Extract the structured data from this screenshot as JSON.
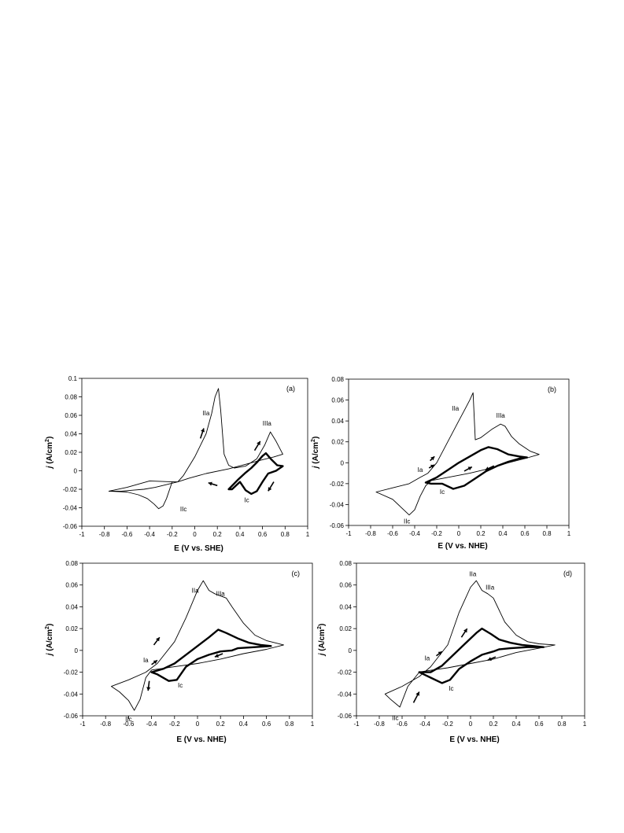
{
  "chart_data": [
    {
      "type": "line",
      "panel_label": "(a)",
      "xlabel": "E (V vs. SHE)",
      "ylabel": "j (A/cm2)",
      "xlim": [
        -1,
        1
      ],
      "ylim": [
        -0.06,
        0.1
      ],
      "xticks": [
        -1,
        -0.8,
        -0.6,
        -0.4,
        -0.2,
        0,
        0.2,
        0.4,
        0.6,
        0.8,
        1
      ],
      "yticks": [
        -0.06,
        -0.04,
        -0.02,
        0,
        0.02,
        0.04,
        0.06,
        0.08,
        0.1
      ],
      "xtick_labels": [
        "-1",
        "-0.8",
        "-0.6",
        "-0.4",
        "-0.2",
        "0",
        "0.2",
        "0.4",
        "0.6",
        "0.8",
        "1"
      ],
      "ytick_labels": [
        "-0.06",
        "-0.04",
        "-0.02",
        "0",
        "0.02",
        "0.04",
        "0.06",
        "0.08",
        "0.1"
      ],
      "series": [
        {
          "style": "thin",
          "x": [
            0.78,
            0.7,
            0.6,
            0.45,
            0.3,
            0.1,
            -0.05,
            -0.15,
            -0.25,
            -0.35,
            -0.45,
            -0.55,
            -0.65,
            -0.76,
            -0.6,
            -0.4,
            -0.2,
            -0.15,
            -0.1,
            0.0,
            0.1,
            0.15,
            0.18,
            0.21,
            0.23,
            0.26,
            0.3,
            0.35,
            0.45,
            0.55,
            0.62,
            0.67,
            0.72,
            0.78
          ],
          "y": [
            0.018,
            0.015,
            0.012,
            0.007,
            0.002,
            -0.003,
            -0.008,
            -0.012,
            -0.015,
            -0.018,
            -0.02,
            -0.021,
            -0.022,
            -0.022,
            -0.018,
            -0.011,
            -0.012,
            -0.012,
            -0.005,
            0.015,
            0.04,
            0.062,
            0.08,
            0.089,
            0.065,
            0.018,
            0.006,
            0.003,
            0.005,
            0.013,
            0.028,
            0.042,
            0.032,
            0.018
          ]
        },
        {
          "style": "thin",
          "x": [
            -0.2,
            -0.25,
            -0.28,
            -0.32,
            -0.36,
            -0.42,
            -0.5,
            -0.6,
            -0.76
          ],
          "y": [
            -0.012,
            -0.03,
            -0.038,
            -0.041,
            -0.036,
            -0.03,
            -0.026,
            -0.023,
            -0.022
          ]
        },
        {
          "style": "thick",
          "x": [
            0.3,
            0.38,
            0.45,
            0.5,
            0.55,
            0.6,
            0.63,
            0.68,
            0.73,
            0.78,
            0.72,
            0.65,
            0.6,
            0.55,
            0.5,
            0.45,
            0.4,
            0.33,
            0.3
          ],
          "y": [
            -0.02,
            -0.01,
            -0.002,
            0.003,
            0.009,
            0.016,
            0.019,
            0.012,
            0.006,
            0.005,
            0.0,
            -0.003,
            -0.012,
            -0.022,
            -0.025,
            -0.021,
            -0.012,
            -0.02,
            -0.02
          ]
        }
      ],
      "annotations": [
        {
          "text": "IIa",
          "x": 0.1,
          "y": 0.06
        },
        {
          "text": "IIIa",
          "x": 0.64,
          "y": 0.049
        },
        {
          "text": "Ic",
          "x": 0.46,
          "y": -0.034
        },
        {
          "text": "IIc",
          "x": -0.1,
          "y": -0.044
        }
      ],
      "arrows": [
        {
          "x1": 0.05,
          "y1": 0.035,
          "x2": 0.08,
          "y2": 0.046
        },
        {
          "x1": 0.53,
          "y1": 0.022,
          "x2": 0.58,
          "y2": 0.032
        },
        {
          "x1": 0.2,
          "y1": -0.016,
          "x2": 0.12,
          "y2": -0.013
        },
        {
          "x1": 0.7,
          "y1": -0.012,
          "x2": 0.65,
          "y2": -0.022
        }
      ]
    },
    {
      "type": "line",
      "panel_label": "(b)",
      "xlabel": "E (V vs. NHE)",
      "ylabel": "j (A/cm2)",
      "xlim": [
        -1,
        1
      ],
      "ylim": [
        -0.06,
        0.08
      ],
      "xticks": [
        -1,
        -0.8,
        -0.6,
        -0.4,
        -0.2,
        0,
        0.2,
        0.4,
        0.6,
        0.8,
        1
      ],
      "yticks": [
        -0.06,
        -0.04,
        -0.02,
        0,
        0.02,
        0.04,
        0.06,
        0.08
      ],
      "xtick_labels": [
        "-1",
        "-0.8",
        "-0.6",
        "-0.4",
        "-0.2",
        "0",
        "0.2",
        "0.4",
        "0.6",
        "0.8",
        "1"
      ],
      "ytick_labels": [
        "-0.06",
        "-0.04",
        "-0.02",
        "0",
        "0.02",
        "0.04",
        "0.06",
        "0.08"
      ],
      "series": [
        {
          "style": "thin",
          "x": [
            -0.75,
            -0.6,
            -0.45,
            -0.35,
            -0.28,
            -0.2,
            -0.1,
            0.0,
            0.05,
            0.1,
            0.13,
            0.15,
            0.2,
            0.3,
            0.38,
            0.42,
            0.48,
            0.55,
            0.65,
            0.73,
            0.6,
            0.45,
            0.3,
            0.1,
            -0.1,
            -0.25,
            -0.3,
            -0.35,
            -0.4,
            -0.45,
            -0.5,
            -0.6,
            -0.75
          ],
          "y": [
            -0.028,
            -0.024,
            -0.02,
            -0.014,
            -0.01,
            0.0,
            0.02,
            0.04,
            0.05,
            0.06,
            0.067,
            0.022,
            0.024,
            0.032,
            0.037,
            0.035,
            0.025,
            0.018,
            0.011,
            0.008,
            0.004,
            0.0,
            -0.005,
            -0.01,
            -0.014,
            -0.017,
            -0.022,
            -0.032,
            -0.045,
            -0.05,
            -0.045,
            -0.035,
            -0.028
          ]
        },
        {
          "style": "thick",
          "x": [
            -0.3,
            -0.2,
            -0.1,
            0.0,
            0.1,
            0.2,
            0.27,
            0.35,
            0.45,
            0.55,
            0.62,
            0.55,
            0.45,
            0.35,
            0.25,
            0.15,
            0.05,
            -0.05,
            -0.15,
            -0.25,
            -0.3
          ],
          "y": [
            -0.019,
            -0.014,
            -0.007,
            0.0,
            0.006,
            0.012,
            0.015,
            0.013,
            0.008,
            0.006,
            0.005,
            0.004,
            0.001,
            -0.003,
            -0.008,
            -0.015,
            -0.022,
            -0.025,
            -0.02,
            -0.02,
            -0.019
          ]
        }
      ],
      "annotations": [
        {
          "text": "IIa",
          "x": -0.03,
          "y": 0.05
        },
        {
          "text": "IIIa",
          "x": 0.38,
          "y": 0.043
        },
        {
          "text": "Ia",
          "x": -0.35,
          "y": -0.009
        },
        {
          "text": "Ic",
          "x": -0.15,
          "y": -0.03
        },
        {
          "text": "IIc",
          "x": -0.47,
          "y": -0.058
        }
      ],
      "arrows": [
        {
          "x1": -0.27,
          "y1": -0.005,
          "x2": -0.22,
          "y2": -0.002
        },
        {
          "x1": -0.26,
          "y1": 0.002,
          "x2": -0.22,
          "y2": 0.006
        },
        {
          "x1": 0.05,
          "y1": -0.008,
          "x2": 0.12,
          "y2": -0.004
        },
        {
          "x1": 0.32,
          "y1": -0.003,
          "x2": 0.24,
          "y2": -0.007
        }
      ]
    },
    {
      "type": "line",
      "panel_label": "(c)",
      "xlabel": "E (V vs. NHE)",
      "ylabel": "j (A/cm2)",
      "xlim": [
        -1,
        1
      ],
      "ylim": [
        -0.06,
        0.08
      ],
      "xticks": [
        -1,
        -0.8,
        -0.6,
        -0.4,
        -0.2,
        0,
        0.2,
        0.4,
        0.6,
        0.8,
        1
      ],
      "yticks": [
        -0.06,
        -0.04,
        -0.02,
        0,
        0.02,
        0.04,
        0.06,
        0.08
      ],
      "xtick_labels": [
        "-1",
        "-0.8",
        "-0.6",
        "-0.4",
        "-0.2",
        "0",
        "0.2",
        "0.4",
        "0.6",
        "0.8",
        "1"
      ],
      "ytick_labels": [
        "-0.06",
        "-0.04",
        "-0.02",
        "0",
        "0.02",
        "0.04",
        "0.06",
        "0.08"
      ],
      "series": [
        {
          "style": "thin",
          "x": [
            -0.75,
            -0.6,
            -0.45,
            -0.35,
            -0.2,
            -0.1,
            0.0,
            0.05,
            0.1,
            0.15,
            0.2,
            0.25,
            0.3,
            0.4,
            0.5,
            0.6,
            0.75,
            0.6,
            0.4,
            0.2,
            0.0,
            -0.2,
            -0.4,
            -0.45,
            -0.5,
            -0.55,
            -0.6,
            -0.68,
            -0.75
          ],
          "y": [
            -0.033,
            -0.027,
            -0.02,
            -0.012,
            0.008,
            0.03,
            0.055,
            0.064,
            0.055,
            0.052,
            0.05,
            0.048,
            0.04,
            0.025,
            0.014,
            0.009,
            0.005,
            0.001,
            -0.003,
            -0.008,
            -0.012,
            -0.015,
            -0.018,
            -0.025,
            -0.045,
            -0.055,
            -0.046,
            -0.038,
            -0.033
          ]
        },
        {
          "style": "thick",
          "x": [
            -0.4,
            -0.3,
            -0.2,
            -0.1,
            0.0,
            0.1,
            0.18,
            0.25,
            0.35,
            0.45,
            0.55,
            0.64,
            0.5,
            0.35,
            0.3,
            0.2,
            0.1,
            0.0,
            -0.1,
            -0.18,
            -0.25,
            -0.35,
            -0.4
          ],
          "y": [
            -0.02,
            -0.017,
            -0.012,
            -0.004,
            0.004,
            0.012,
            0.019,
            0.016,
            0.011,
            0.007,
            0.005,
            0.004,
            0.003,
            0.002,
            0.0,
            -0.001,
            -0.004,
            -0.008,
            -0.015,
            -0.027,
            -0.028,
            -0.022,
            -0.02
          ]
        }
      ],
      "annotations": [
        {
          "text": "IIa",
          "x": -0.02,
          "y": 0.053
        },
        {
          "text": "IIIa",
          "x": 0.2,
          "y": 0.05
        },
        {
          "text": "Ia",
          "x": -0.45,
          "y": -0.011
        },
        {
          "text": "Ic",
          "x": -0.15,
          "y": -0.034
        },
        {
          "text": "IIc",
          "x": -0.6,
          "y": -0.065
        }
      ],
      "arrows": [
        {
          "x1": -0.38,
          "y1": 0.005,
          "x2": -0.33,
          "y2": 0.012
        },
        {
          "x1": -0.4,
          "y1": -0.013,
          "x2": -0.35,
          "y2": -0.009
        },
        {
          "x1": -0.42,
          "y1": -0.028,
          "x2": -0.43,
          "y2": -0.037
        },
        {
          "x1": 0.22,
          "y1": -0.003,
          "x2": 0.15,
          "y2": -0.006
        }
      ]
    },
    {
      "type": "line",
      "panel_label": "(d)",
      "xlabel": "E (V vs. NHE)",
      "ylabel": "j (A/cm2)",
      "xlim": [
        -1,
        1
      ],
      "ylim": [
        -0.06,
        0.08
      ],
      "xticks": [
        -1,
        -0.8,
        -0.6,
        -0.4,
        -0.2,
        0,
        0.2,
        0.4,
        0.6,
        0.8,
        1
      ],
      "yticks": [
        -0.06,
        -0.04,
        -0.02,
        0,
        0.02,
        0.04,
        0.06,
        0.08
      ],
      "xtick_labels": [
        "-1",
        "-0.8",
        "-0.6",
        "-0.4",
        "-0.2",
        "0",
        "0.2",
        "0.4",
        "0.6",
        "0.8",
        "1"
      ],
      "ytick_labels": [
        "-0.06",
        "-0.04",
        "-0.02",
        "0",
        "0.02",
        "0.04",
        "0.06",
        "0.08"
      ],
      "series": [
        {
          "style": "thin",
          "x": [
            -0.75,
            -0.6,
            -0.45,
            -0.35,
            -0.2,
            -0.1,
            0.0,
            0.05,
            0.1,
            0.15,
            0.2,
            0.3,
            0.4,
            0.5,
            0.6,
            0.74,
            0.6,
            0.4,
            0.2,
            0.0,
            -0.2,
            -0.4,
            -0.45,
            -0.55,
            -0.62,
            -0.7,
            -0.75
          ],
          "y": [
            -0.04,
            -0.033,
            -0.024,
            -0.015,
            0.005,
            0.035,
            0.058,
            0.064,
            0.055,
            0.052,
            0.048,
            0.026,
            0.014,
            0.008,
            0.006,
            0.005,
            0.002,
            -0.002,
            -0.008,
            -0.012,
            -0.016,
            -0.019,
            -0.02,
            -0.033,
            -0.052,
            -0.045,
            -0.04
          ]
        },
        {
          "style": "thick",
          "x": [
            -0.45,
            -0.35,
            -0.25,
            -0.15,
            -0.05,
            0.05,
            0.1,
            0.18,
            0.25,
            0.35,
            0.45,
            0.55,
            0.64,
            0.5,
            0.35,
            0.25,
            0.2,
            0.1,
            0.0,
            -0.1,
            -0.18,
            -0.25,
            -0.35,
            -0.45
          ],
          "y": [
            -0.02,
            -0.02,
            -0.014,
            -0.004,
            0.006,
            0.016,
            0.02,
            0.015,
            0.01,
            0.007,
            0.005,
            0.004,
            0.003,
            0.003,
            0.002,
            0.001,
            -0.001,
            -0.004,
            -0.01,
            -0.017,
            -0.027,
            -0.03,
            -0.025,
            -0.02
          ]
        }
      ],
      "annotations": [
        {
          "text": "IIa",
          "x": 0.02,
          "y": 0.068
        },
        {
          "text": "IIIa",
          "x": 0.17,
          "y": 0.056
        },
        {
          "text": "Ia",
          "x": -0.38,
          "y": -0.009
        },
        {
          "text": "Ic",
          "x": -0.17,
          "y": -0.037
        },
        {
          "text": "IIc",
          "x": -0.66,
          "y": -0.064
        }
      ],
      "arrows": [
        {
          "x1": -0.08,
          "y1": 0.012,
          "x2": -0.03,
          "y2": 0.02
        },
        {
          "x1": -0.3,
          "y1": -0.005,
          "x2": -0.25,
          "y2": -0.001
        },
        {
          "x1": -0.5,
          "y1": -0.048,
          "x2": -0.45,
          "y2": -0.038
        },
        {
          "x1": 0.22,
          "y1": -0.006,
          "x2": 0.15,
          "y2": -0.009
        }
      ]
    }
  ]
}
